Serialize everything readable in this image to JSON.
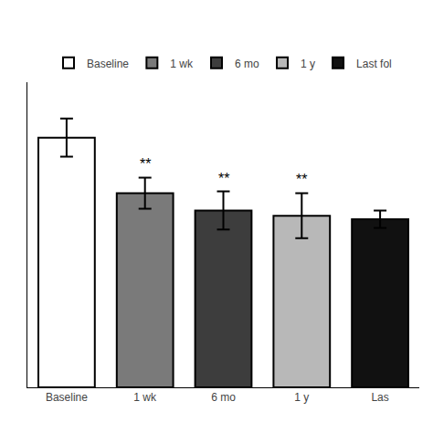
{
  "chart_data": {
    "type": "bar",
    "categories": [
      "Baseline",
      "1 wk",
      "6 mo",
      "1 y",
      "Las"
    ],
    "series": [
      {
        "name": "Baseline",
        "color": "#ffffff",
        "values": [
          72,
          null,
          null,
          null,
          null
        ],
        "errors": [
          5.5,
          null,
          null,
          null,
          null
        ]
      },
      {
        "name": "1 wk",
        "color": "#7a7a7a",
        "values": [
          null,
          56,
          null,
          null,
          null
        ],
        "errors": [
          null,
          4.5,
          null,
          null,
          null
        ]
      },
      {
        "name": "6 mo",
        "color": "#3d3d3d",
        "values": [
          null,
          null,
          51,
          null,
          null
        ],
        "errors": [
          null,
          null,
          5.5,
          null,
          null
        ]
      },
      {
        "name": "1 y",
        "color": "#b8b8b8",
        "values": [
          null,
          null,
          null,
          49.5,
          null
        ],
        "errors": [
          null,
          null,
          null,
          6.5,
          null
        ]
      },
      {
        "name": "Last fol",
        "color": "#111111",
        "values": [
          null,
          null,
          null,
          null,
          48.5
        ],
        "errors": [
          null,
          null,
          null,
          null,
          2.5
        ]
      }
    ],
    "annotations": [
      {
        "category": "1 wk",
        "text": "**"
      },
      {
        "category": "6 mo",
        "text": "**"
      },
      {
        "category": "1 y",
        "text": "**"
      }
    ],
    "ylim": [
      0,
      88
    ],
    "yticks": [],
    "tick_labels": "x",
    "grid": false,
    "legend": "top"
  }
}
